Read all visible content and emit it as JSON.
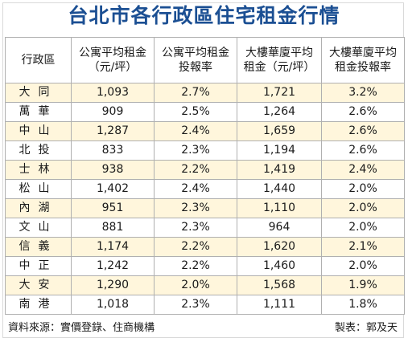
{
  "title": "台北市各行政區住宅租金行情",
  "columns": [
    [
      "行政區"
    ],
    [
      "公寓平均租金",
      "（元/坪）"
    ],
    [
      "公寓平均租金",
      "投報率"
    ],
    [
      "大樓華廈平均",
      "租金（元/坪）"
    ],
    [
      "大樓華廈平均",
      "租金投報率"
    ]
  ],
  "rows": [
    [
      "大同",
      "1,093",
      "2.7%",
      "1,721",
      "3.2%"
    ],
    [
      "萬華",
      "909",
      "2.5%",
      "1,264",
      "2.6%"
    ],
    [
      "中山",
      "1,287",
      "2.4%",
      "1,659",
      "2.6%"
    ],
    [
      "北投",
      "833",
      "2.3%",
      "1,194",
      "2.6%"
    ],
    [
      "士林",
      "938",
      "2.2%",
      "1,419",
      "2.4%"
    ],
    [
      "松山",
      "1,402",
      "2.4%",
      "1,440",
      "2.0%"
    ],
    [
      "內湖",
      "951",
      "2.3%",
      "1,110",
      "2.0%"
    ],
    [
      "文山",
      "881",
      "2.3%",
      "964",
      "2.0%"
    ],
    [
      "信義",
      "1,174",
      "2.2%",
      "1,620",
      "2.1%"
    ],
    [
      "中正",
      "1,242",
      "2.2%",
      "1,460",
      "2.0%"
    ],
    [
      "大安",
      "1,290",
      "2.0%",
      "1,568",
      "1.9%"
    ],
    [
      "南港",
      "1,018",
      "2.3%",
      "1,111",
      "1.8%"
    ]
  ],
  "footer": {
    "source": "資料來源：實價登錄、住商機構",
    "credit": "製表：郭及天"
  },
  "colors": {
    "title": "#1b4f93",
    "stripe": "#fff6dc",
    "grid": "#b0b0b0"
  }
}
